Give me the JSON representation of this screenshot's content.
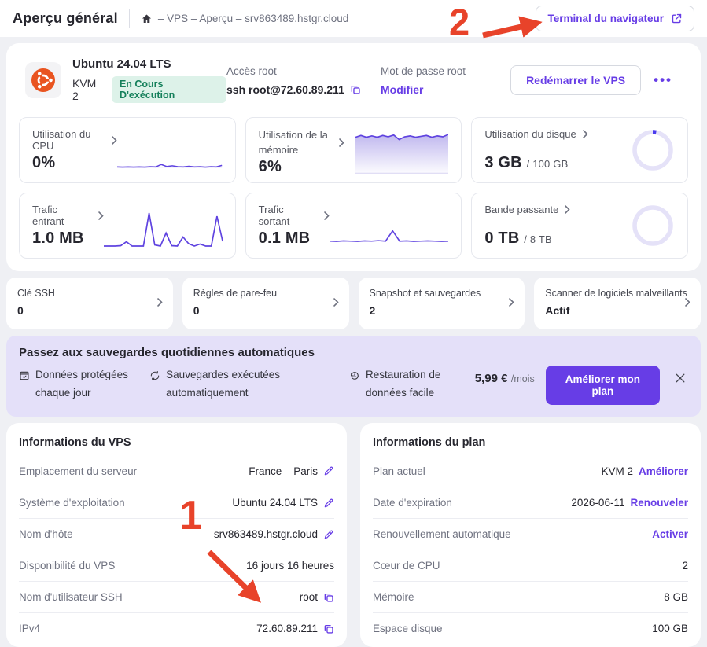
{
  "header": {
    "title": "Aperçu général",
    "breadcrumb": "– VPS – Aperçu – srv863489.hstgr.cloud",
    "terminal_button": "Terminal du navigateur"
  },
  "server": {
    "os_name": "Ubuntu 24.04 LTS",
    "plan": "KVM 2",
    "status_badge": "En Cours D'exécution",
    "root_access_label": "Accès root",
    "ssh_command": "ssh root@72.60.89.211",
    "root_password_label": "Mot de passe root",
    "modify_link": "Modifier",
    "restart_button": "Redémarrer le VPS",
    "more_menu": "•••"
  },
  "metrics": [
    {
      "label": "Utilisation du CPU",
      "value": "0%",
      "type": "spark",
      "spark": [
        7,
        6,
        7,
        6,
        7,
        6,
        8,
        7,
        20,
        9,
        13,
        8,
        7,
        10,
        7,
        8,
        6,
        8,
        7,
        15
      ]
    },
    {
      "label": "Utilisation de la mémoire",
      "value": "6%",
      "type": "area",
      "spark": [
        80,
        84,
        80,
        83,
        80,
        84,
        81,
        85,
        75,
        81,
        83,
        80,
        82,
        84,
        80,
        83,
        81,
        86
      ]
    },
    {
      "label": "Utilisation du disque",
      "value": "3 GB",
      "suffix": "/ 100 GB",
      "type": "ring",
      "percent": 3
    },
    {
      "label": "Trafic entrant",
      "value": "1.0 MB",
      "type": "spark",
      "spark": [
        4,
        4,
        4,
        5,
        15,
        4,
        4,
        4,
        88,
        7,
        4,
        37,
        5,
        4,
        27,
        10,
        4,
        9,
        4,
        4,
        80,
        16
      ]
    },
    {
      "label": "Trafic sortant",
      "value": "0.1 MB",
      "type": "spark",
      "spark": [
        7,
        6,
        8,
        7,
        6,
        8,
        7,
        9,
        7,
        48,
        7,
        8,
        6,
        7,
        8,
        7,
        6,
        7
      ]
    },
    {
      "label": "Bande passante",
      "value": "0 TB",
      "suffix": "/ 8 TB",
      "type": "ring",
      "percent": 0
    }
  ],
  "quick_links": [
    {
      "label": "Clé SSH",
      "value": "0"
    },
    {
      "label": "Règles de pare-feu",
      "value": "0"
    },
    {
      "label": "Snapshot et sauvegardes",
      "value": "2"
    },
    {
      "label": "Scanner de logiciels malveillants",
      "value": "Actif"
    }
  ],
  "banner": {
    "title": "Passez aux sauvegardes quotidiennes automatiques",
    "features": [
      {
        "icon": "shield-check-icon",
        "text": "Données protégées chaque jour"
      },
      {
        "icon": "sync-icon",
        "text": "Sauvegardes exécutées automatiquement"
      },
      {
        "icon": "history-icon",
        "text": "Restauration de données facile"
      }
    ],
    "price": "5,99 €",
    "price_period": "/mois",
    "cta": "Améliorer mon plan"
  },
  "vps_info": {
    "title": "Informations du VPS",
    "rows": [
      {
        "label": "Emplacement du serveur",
        "value": "France – Paris",
        "icon": "edit"
      },
      {
        "label": "Système d'exploitation",
        "value": "Ubuntu 24.04 LTS",
        "icon": "edit"
      },
      {
        "label": "Nom d'hôte",
        "value": "srv863489.hstgr.cloud",
        "icon": "edit"
      },
      {
        "label": "Disponibilité du VPS",
        "value": "16 jours 16 heures"
      },
      {
        "label": "Nom d'utilisateur SSH",
        "value": "root",
        "icon": "copy"
      },
      {
        "label": "IPv4",
        "value": "72.60.89.211",
        "icon": "copy"
      }
    ]
  },
  "plan_info": {
    "title": "Informations du plan",
    "rows": [
      {
        "label": "Plan actuel",
        "value": "KVM 2",
        "link": "Améliorer"
      },
      {
        "label": "Date d'expiration",
        "value": "2026-06-11",
        "link": "Renouveler"
      },
      {
        "label": "Renouvellement automatique",
        "value": "",
        "link": "Activer"
      },
      {
        "label": "Cœur de CPU",
        "value": "2"
      },
      {
        "label": "Mémoire",
        "value": "8 GB"
      },
      {
        "label": "Espace disque",
        "value": "100 GB"
      }
    ]
  },
  "annotations": {
    "step_1": "1",
    "step_2": "2"
  },
  "colors": {
    "accent": "#673de6",
    "annotation_red": "#e8432a",
    "status_green": "#15805b",
    "ubuntu_orange": "#e95420"
  }
}
